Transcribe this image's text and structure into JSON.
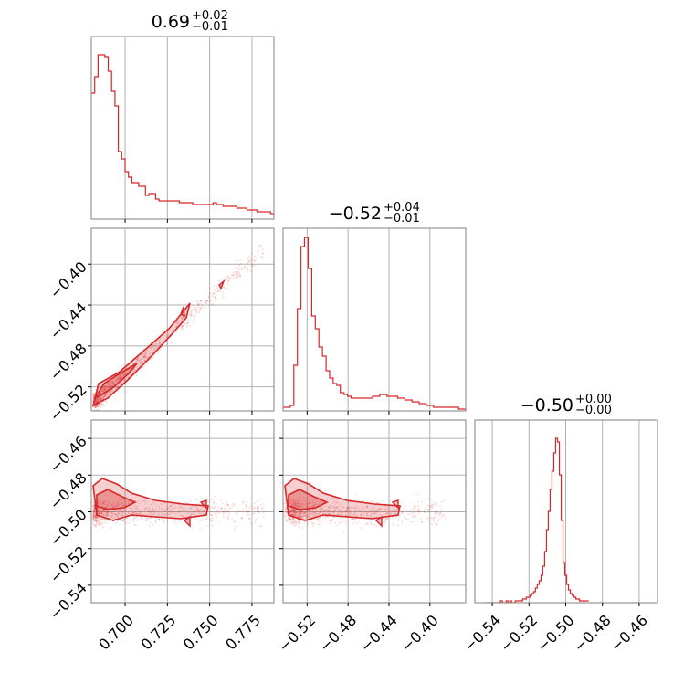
{
  "colors": {
    "accent": "#d62728",
    "grid": "#b0b0b0",
    "frame": "#808080"
  },
  "chart_data": {
    "type": "corner",
    "params": [
      {
        "title": {
          "main": "0.69",
          "plus": "+0.02",
          "minus": "−0.01"
        },
        "ticks": [
          0.7,
          0.725,
          0.75,
          0.775
        ],
        "tick_labels": [
          "0.700",
          "0.725",
          "0.750",
          "0.775"
        ],
        "range": [
          0.68,
          0.788
        ]
      },
      {
        "title": {
          "main": "−0.52",
          "plus": "+0.04",
          "minus": "−0.01"
        },
        "ticks": [
          -0.52,
          -0.48,
          -0.44,
          -0.4
        ],
        "tick_labels": [
          "−0.52",
          "−0.48",
          "−0.44",
          "−0.40"
        ],
        "range": [
          -0.5435,
          -0.365
        ]
      },
      {
        "title": {
          "main": "−0.50",
          "plus": "+0.00",
          "minus": "−0.00"
        },
        "ticks": [
          -0.54,
          -0.52,
          -0.5,
          -0.48,
          -0.46
        ],
        "tick_labels": [
          "−0.54",
          "−0.52",
          "−0.50",
          "−0.48",
          "−0.46"
        ],
        "range": [
          -0.5495,
          -0.45
        ]
      }
    ],
    "histograms": [
      {
        "param": 0,
        "x_start": 0.68,
        "bin_width": 0.002,
        "counts": [
          0.69,
          0.78,
          0.9,
          0.9,
          0.89,
          0.81,
          0.7,
          0.62,
          0.37,
          0.33,
          0.26,
          0.23,
          0.2,
          0.2,
          0.18,
          0.18,
          0.13,
          0.14,
          0.14,
          0.11,
          0.1,
          0.1,
          0.1,
          0.1,
          0.1,
          0.1,
          0.09,
          0.09,
          0.09,
          0.09,
          0.08,
          0.08,
          0.08,
          0.08,
          0.08,
          0.08,
          0.09,
          0.08,
          0.08,
          0.07,
          0.07,
          0.07,
          0.07,
          0.06,
          0.06,
          0.06,
          0.05,
          0.05,
          0.05,
          0.04,
          0.04,
          0.04,
          0.04,
          0.03
        ]
      },
      {
        "param": 1,
        "x_start": -0.5435,
        "bin_width": 0.0035,
        "counts": [
          0.02,
          0.02,
          0.03,
          0.25,
          0.56,
          0.9,
          0.95,
          0.78,
          0.52,
          0.45,
          0.35,
          0.3,
          0.22,
          0.18,
          0.15,
          0.14,
          0.1,
          0.09,
          0.08,
          0.07,
          0.07,
          0.07,
          0.07,
          0.07,
          0.07,
          0.08,
          0.08,
          0.09,
          0.09,
          0.08,
          0.08,
          0.08,
          0.07,
          0.07,
          0.06,
          0.06,
          0.05,
          0.05,
          0.04,
          0.04,
          0.03,
          0.03,
          0.02,
          0.02,
          0.02,
          0.02,
          0.02,
          0.02,
          0.02,
          0.01,
          0.01
        ]
      },
      {
        "param": 2,
        "x_start": -0.5435,
        "bin_width": 0.001,
        "counts": [
          0,
          0,
          0,
          0,
          0,
          0,
          0,
          0,
          0.01,
          0,
          0,
          0.01,
          0,
          0.01,
          0,
          0,
          0.01,
          0.01,
          0.01,
          0.01,
          0.02,
          0.02,
          0.03,
          0.03,
          0.04,
          0.05,
          0.06,
          0.08,
          0.1,
          0.12,
          0.15,
          0.2,
          0.28,
          0.4,
          0.5,
          0.62,
          0.72,
          0.82,
          0.9,
          0.88,
          0.7,
          0.45,
          0.22,
          0.15,
          0.1,
          0.07,
          0.05,
          0.04,
          0.03,
          0.02,
          0.02,
          0.01,
          0.01,
          0.01,
          0.01,
          0.01
        ]
      }
    ],
    "pair_plots": [
      {
        "x_param": 0,
        "y_param": 1,
        "correlation": "strong-positive"
      },
      {
        "x_param": 0,
        "y_param": 2,
        "correlation": "weak"
      },
      {
        "x_param": 1,
        "y_param": 2,
        "correlation": "weak"
      }
    ],
    "grid": true,
    "legend": "none"
  }
}
